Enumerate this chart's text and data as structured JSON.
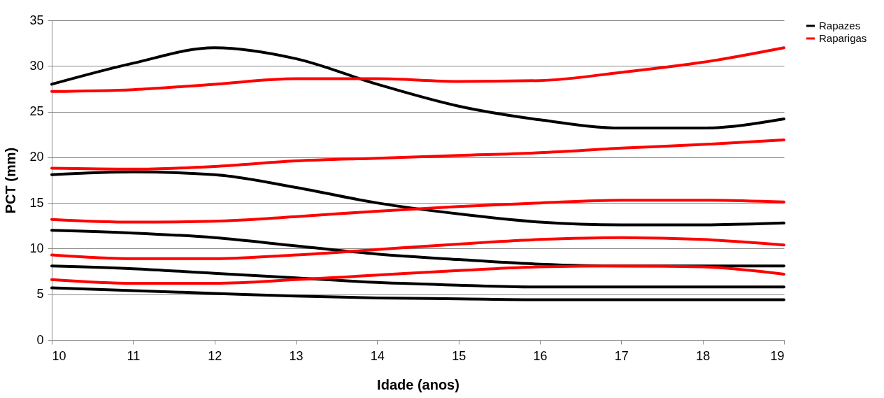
{
  "chart_data": {
    "type": "line",
    "xlabel": "Idade (anos)",
    "ylabel": "PCT (mm)",
    "x": [
      10,
      11,
      12,
      13,
      14,
      15,
      16,
      17,
      18,
      19
    ],
    "xlim": [
      10,
      19
    ],
    "xticks": [
      10,
      11,
      12,
      13,
      14,
      15,
      16,
      17,
      18,
      19
    ],
    "ylim": [
      0,
      35
    ],
    "yticks": [
      0,
      5,
      10,
      15,
      20,
      25,
      30,
      35
    ],
    "grid": "y",
    "legend": "top right",
    "marker": "none",
    "line_style": "solid",
    "series": [
      {
        "name": "Rapazes",
        "color": "#000000",
        "values": [
          28.0,
          30.3,
          32.0,
          30.8,
          28.0,
          25.6,
          24.1,
          23.2,
          23.2,
          24.2
        ]
      },
      {
        "name": "Raparigas",
        "color": "#ff0000",
        "values": [
          27.2,
          27.4,
          28.0,
          28.6,
          28.6,
          28.3,
          28.4,
          29.3,
          30.4,
          32.0
        ]
      },
      {
        "color": "#000000",
        "values": [
          18.1,
          18.4,
          18.1,
          16.7,
          15.0,
          13.8,
          12.9,
          12.6,
          12.6,
          12.8
        ]
      },
      {
        "color": "#000000",
        "values": [
          12.0,
          11.7,
          11.2,
          10.3,
          9.4,
          8.8,
          8.3,
          8.1,
          8.1,
          8.1
        ]
      },
      {
        "color": "#000000",
        "values": [
          8.1,
          7.8,
          7.3,
          6.8,
          6.3,
          6.0,
          5.8,
          5.8,
          5.8,
          5.8
        ]
      },
      {
        "color": "#000000",
        "values": [
          5.7,
          5.4,
          5.1,
          4.8,
          4.6,
          4.5,
          4.4,
          4.4,
          4.4,
          4.4
        ]
      },
      {
        "color": "#ff0000",
        "values": [
          18.8,
          18.7,
          19.0,
          19.6,
          19.9,
          20.2,
          20.5,
          21.0,
          21.4,
          21.9
        ]
      },
      {
        "color": "#ff0000",
        "values": [
          13.2,
          12.9,
          13.0,
          13.5,
          14.1,
          14.6,
          15.0,
          15.3,
          15.3,
          15.1
        ]
      },
      {
        "color": "#ff0000",
        "values": [
          9.3,
          8.9,
          8.9,
          9.3,
          9.9,
          10.5,
          11.0,
          11.2,
          11.0,
          10.4
        ]
      },
      {
        "color": "#ff0000",
        "values": [
          6.6,
          6.2,
          6.2,
          6.6,
          7.1,
          7.6,
          8.0,
          8.1,
          8.0,
          7.2
        ]
      }
    ]
  }
}
